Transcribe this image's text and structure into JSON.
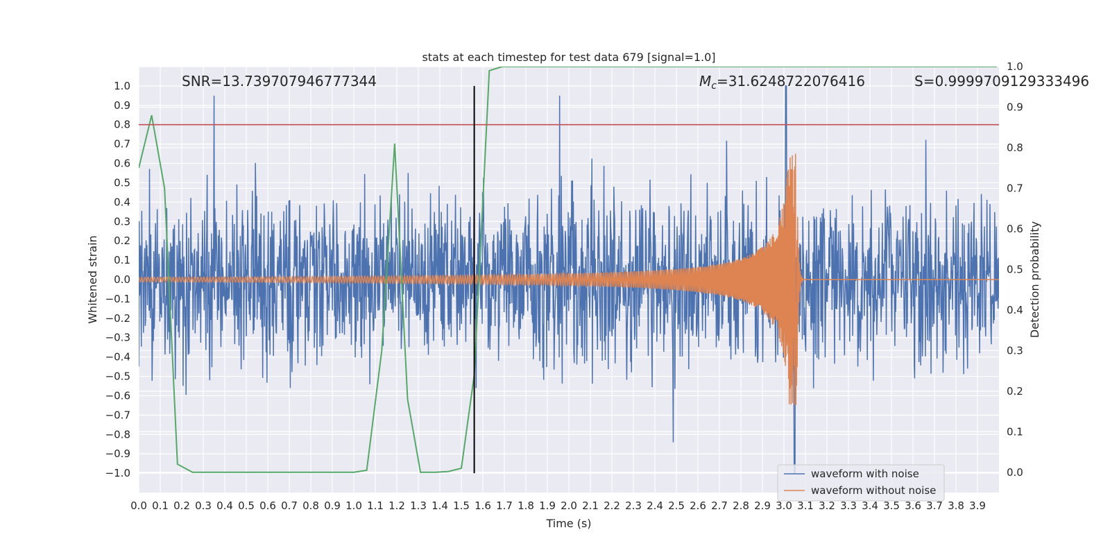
{
  "chart_data": {
    "type": "line",
    "title": "stats at each timestep for test data 679 [signal=1.0]",
    "xlabel": "Time (s)",
    "ylabel": "Whitened strain",
    "ylabel_right": "Detection probability",
    "xlim": [
      0.0,
      4.0
    ],
    "ylim": [
      -1.1,
      1.1
    ],
    "ylim_right": [
      -0.05,
      1.0
    ],
    "x_ticks": [
      "0.0",
      "0.1",
      "0.2",
      "0.3",
      "0.4",
      "0.5",
      "0.6",
      "0.7",
      "0.8",
      "0.9",
      "1.0",
      "1.1",
      "1.2",
      "1.3",
      "1.4",
      "1.5",
      "1.6",
      "1.7",
      "1.8",
      "1.9",
      "2.0",
      "2.1",
      "2.2",
      "2.3",
      "2.4",
      "2.5",
      "2.6",
      "2.7",
      "2.8",
      "2.9",
      "3.0",
      "3.1",
      "3.2",
      "3.3",
      "3.4",
      "3.5",
      "3.6",
      "3.7",
      "3.8",
      "3.9"
    ],
    "y_ticks": [
      "1.0",
      "0.9",
      "0.8",
      "0.7",
      "0.6",
      "0.5",
      "0.4",
      "0.3",
      "0.2",
      "0.1",
      "0.0",
      "−0.1",
      "−0.2",
      "−0.3",
      "−0.4",
      "−0.5",
      "−0.6",
      "−0.7",
      "−0.8",
      "−0.9",
      "−1.0"
    ],
    "y_right_ticks": [
      "1.0",
      "0.9",
      "0.8",
      "0.7",
      "0.6",
      "0.5",
      "0.4",
      "0.3",
      "0.2",
      "0.1",
      "0.0"
    ],
    "grid": true,
    "legend_position": "bottom-right",
    "annotations": {
      "snr": "SNR=13.739707946777344",
      "mc_symbol": "M",
      "mc_subscript": "c",
      "mc_value": "=31.6248722076416",
      "s": "S=0.9999709129333496"
    },
    "threshold_line": {
      "value": 0.8,
      "color": "#c44e52"
    },
    "vertical_marker": {
      "x": 1.56,
      "color": "#000000"
    },
    "series": [
      {
        "name": "waveform with noise",
        "color": "#4c72b0",
        "kind": "noise",
        "amplitude_typical": 0.4,
        "amplitude_max": 0.95,
        "spike_x": [
          3.01,
          3.05
        ],
        "spike_min": -1.0,
        "spike_max": 1.0
      },
      {
        "name": "waveform without noise",
        "color": "#dd8452",
        "kind": "chirp",
        "merger_x": 3.06,
        "peak_amplitude": 0.65,
        "base_amplitude": 0.012
      },
      {
        "name": "detection probability",
        "color": "#55a868",
        "axis": "right",
        "x": [
          0.0,
          0.06,
          0.12,
          0.18,
          0.25,
          0.5,
          0.75,
          1.0,
          1.06,
          1.13,
          1.19,
          1.25,
          1.31,
          1.38,
          1.44,
          1.5,
          1.56,
          1.63,
          1.69,
          2.0,
          2.5,
          3.0,
          3.5,
          3.99
        ],
        "y": [
          0.75,
          0.88,
          0.7,
          0.02,
          0.0,
          0.0,
          0.0,
          0.0,
          0.005,
          0.3,
          0.81,
          0.18,
          0.0,
          0.0,
          0.002,
          0.01,
          0.24,
          0.99,
          1.0,
          1.0,
          1.0,
          1.0,
          1.0,
          1.0
        ]
      }
    ]
  }
}
